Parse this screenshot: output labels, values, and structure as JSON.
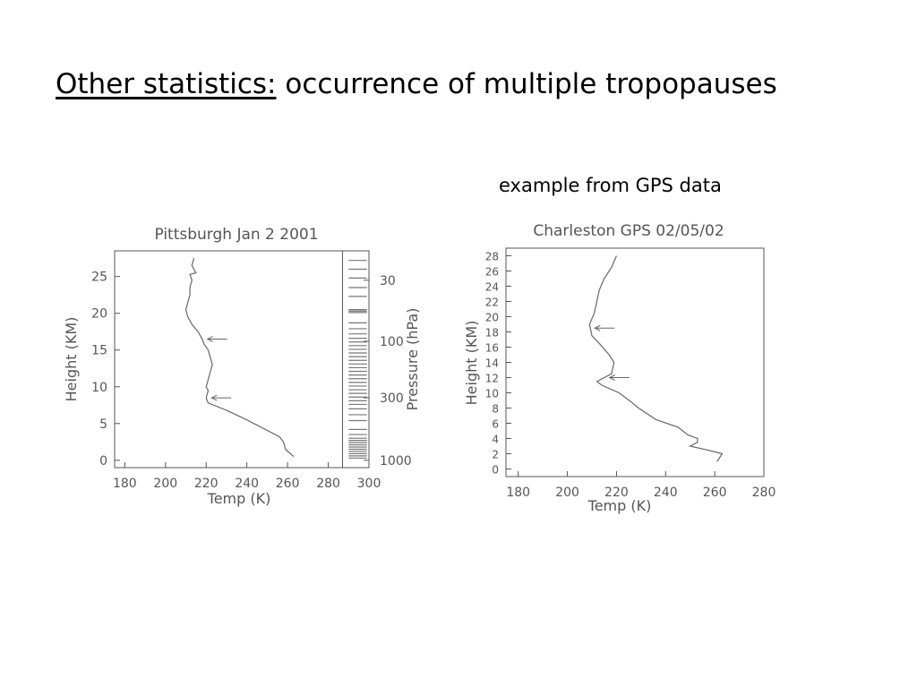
{
  "slide": {
    "title_underlined": "Other statistics:",
    "title_rest": " occurrence of multiple tropopauses",
    "caption": "example from GPS data"
  },
  "colors": {
    "axis": "#555555",
    "profile": "#666666",
    "background": "#ffffff"
  },
  "chart_data": [
    {
      "type": "line",
      "title": "Pittsburgh Jan 2 2001",
      "xlabel": "Temp (K)",
      "ylabel": "Height (KM)",
      "y2label": "Pressure (hPa)",
      "xlim": [
        175,
        300
      ],
      "ylim": [
        -1,
        28.5
      ],
      "xticks": [
        180,
        200,
        220,
        240,
        260,
        280,
        300
      ],
      "yticks": [
        0,
        5,
        10,
        15,
        20,
        25
      ],
      "y2ticks": [
        {
          "label": "30",
          "height": 24.5
        },
        {
          "label": "100",
          "height": 16.2
        },
        {
          "label": "300",
          "height": 8.5
        },
        {
          "label": "1000",
          "height": 0
        }
      ],
      "series": [
        {
          "points": [
            [
              263,
              0.5
            ],
            [
              259,
              1.5
            ],
            [
              258,
              2.5
            ],
            [
              256,
              3.2
            ],
            [
              240,
              5.5
            ],
            [
              230,
              6.8
            ],
            [
              221,
              7.8
            ],
            [
              220,
              8.5
            ],
            [
              221,
              9.5
            ],
            [
              220,
              10
            ],
            [
              221,
              11
            ],
            [
              222,
              12
            ],
            [
              223,
              13
            ],
            [
              222,
              14
            ],
            [
              221,
              15
            ],
            [
              219,
              15.8
            ],
            [
              218,
              16.5
            ],
            [
              216,
              17.5
            ],
            [
              213,
              18.5
            ],
            [
              211,
              19.5
            ],
            [
              210,
              20.5
            ],
            [
              211,
              21.5
            ],
            [
              212,
              22.5
            ],
            [
              212,
              23.5
            ],
            [
              213,
              24.5
            ],
            [
              212,
              25.3
            ],
            [
              215,
              25.5
            ],
            [
              213,
              26.5
            ],
            [
              214,
              27.5
            ]
          ]
        }
      ],
      "arrows_at_height": [
        16.5,
        8.5
      ],
      "pressure_level_bars": [
        0.3,
        0.6,
        0.9,
        1.2,
        1.5,
        1.8,
        2.1,
        2.4,
        2.7,
        3.0,
        3.5,
        4.2,
        5.4,
        6.2,
        7.0,
        7.6,
        8.1,
        8.6,
        9.1,
        9.6,
        10.1,
        10.6,
        11.1,
        11.6,
        12.1,
        12.6,
        13.1,
        13.6,
        14.1,
        14.6,
        15.1,
        15.6,
        16.1,
        16.6,
        17.2,
        17.9,
        18.7,
        20.1,
        20.3,
        20.5,
        22.3,
        23.5,
        24.8,
        26.0,
        27.2
      ]
    },
    {
      "type": "line",
      "title": "Charleston GPS 02/05/02",
      "xlabel": "Temp (K)",
      "ylabel": "Height (KM)",
      "xlim": [
        175,
        280
      ],
      "ylim": [
        -1,
        29
      ],
      "xticks": [
        180,
        200,
        220,
        240,
        260,
        280
      ],
      "yticks": [
        0,
        2,
        4,
        6,
        8,
        10,
        12,
        14,
        16,
        18,
        20,
        22,
        24,
        26,
        28
      ],
      "series": [
        {
          "points": [
            [
              261,
              1
            ],
            [
              263,
              2
            ],
            [
              257,
              2.5
            ],
            [
              250,
              3
            ],
            [
              253,
              3.5
            ],
            [
              253,
              4
            ],
            [
              249,
              4.5
            ],
            [
              245,
              5.5
            ],
            [
              236,
              6.5
            ],
            [
              229,
              8
            ],
            [
              226,
              8.8
            ],
            [
              221,
              10
            ],
            [
              214,
              11
            ],
            [
              212,
              11.5
            ],
            [
              215,
              12
            ],
            [
              218,
              12.5
            ],
            [
              219,
              14
            ],
            [
              217,
              15
            ],
            [
              213,
              16.5
            ],
            [
              210,
              17.5
            ],
            [
              209,
              19
            ],
            [
              211,
              20.5
            ],
            [
              212,
              22
            ],
            [
              213,
              23.5
            ],
            [
              215,
              25
            ],
            [
              218,
              26.5
            ],
            [
              220,
              28
            ]
          ]
        }
      ],
      "arrows_at_height": [
        18.5,
        12
      ]
    }
  ]
}
